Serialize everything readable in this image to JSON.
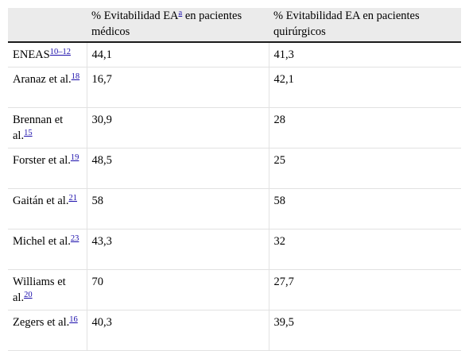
{
  "table": {
    "headers": [
      {
        "text_before": "",
        "sup": "",
        "text_after": ""
      },
      {
        "text_before": "% Evitabilidad EA",
        "sup": "a",
        "text_after": " en pacientes médicos"
      },
      {
        "text_before": "% Evitabilidad EA en pacientes quirúrgicos",
        "sup": "",
        "text_after": ""
      }
    ],
    "rows": [
      {
        "study": "ENEAS",
        "ref": "10–12",
        "medical": "44,1",
        "surgical": "41,3"
      },
      {
        "study": "Aranaz et al.",
        "ref": "18",
        "medical": "16,7",
        "surgical": "42,1"
      },
      {
        "study": "Brennan et al.",
        "ref": "15",
        "medical": "30,9",
        "surgical": "28"
      },
      {
        "study": "Forster et al.",
        "ref": "19",
        "medical": "48,5",
        "surgical": "25"
      },
      {
        "study": "Gaitán et al.",
        "ref": "21",
        "medical": "58",
        "surgical": "58"
      },
      {
        "study": "Michel et al.",
        "ref": "23",
        "medical": "43,3",
        "surgical": "32"
      },
      {
        "study": "Williams et al.",
        "ref": "20",
        "medical": "70",
        "surgical": "27,7"
      },
      {
        "study": "Zegers et al.",
        "ref": "16",
        "medical": "40,3",
        "surgical": "39,5"
      }
    ]
  }
}
